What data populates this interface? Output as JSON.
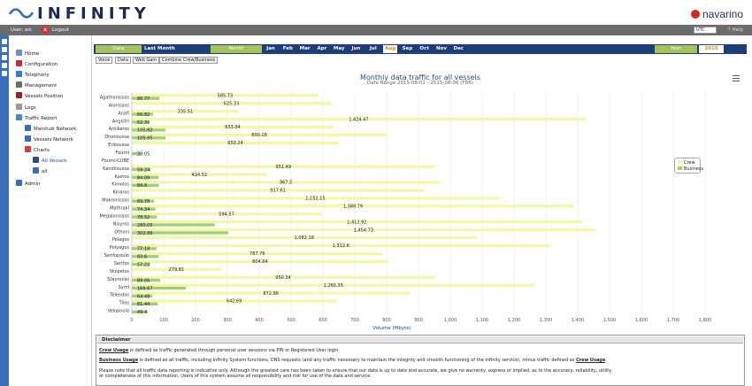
{
  "header": {
    "logo_text": "INFINITY",
    "brand": "navarino"
  },
  "userbar": {
    "user": "User: aic",
    "logout": "Logout",
    "timezone": "UTC",
    "help": "Help"
  },
  "sidebar": {
    "items": [
      {
        "label": "Home"
      },
      {
        "label": "Configuration"
      },
      {
        "label": "Telephony"
      },
      {
        "label": "Management"
      },
      {
        "label": "Vessels Position"
      },
      {
        "label": "Logs"
      },
      {
        "label": "Traffic Report"
      },
      {
        "label": "Mainhub Network"
      },
      {
        "label": "Vessels Network"
      },
      {
        "label": "Charts"
      },
      {
        "label": "All Vessels"
      },
      {
        "label": "all"
      },
      {
        "label": "Admin"
      }
    ]
  },
  "period_bar": {
    "data_label": "Data",
    "last_month": "Last Month",
    "month_label": "Month",
    "months": [
      "Jan",
      "Feb",
      "Mar",
      "Apr",
      "May",
      "Jun",
      "Jul",
      "Aug",
      "Sep",
      "Oct",
      "Nov",
      "Dec"
    ],
    "selected_month": "Aug",
    "year_label": "Year",
    "year": "2015"
  },
  "subtabs": [
    "Voice",
    "Data",
    "Web Gain",
    "Combine Crew/Business"
  ],
  "chart_data": {
    "type": "bar",
    "orientation": "horizontal",
    "title": "Monthly data traffic for all vessels",
    "subtitle": "Date Range 2015-08-01 - 2015-08-06 (FBB)",
    "xlabel": "Volume (Mbyte)",
    "xlim": [
      0,
      1800
    ],
    "x_ticks": [
      "0",
      "100",
      "200",
      "300",
      "400",
      "500",
      "600",
      "700",
      "800",
      "900",
      "1,000",
      "1,100",
      "1,200",
      "1,300",
      "1,400",
      "1,500",
      "1,600",
      "1,700",
      "1,800"
    ],
    "legend": [
      "Crew",
      "Business"
    ],
    "legend_position": "right",
    "colors": {
      "crew": "#f4f7a6",
      "business": "#9ed07a"
    },
    "categories": [
      "Agathonissos",
      "Alonissos",
      "Anafi",
      "Angistri",
      "Antikeros",
      "Dhonoussa",
      "Erikoussa",
      "Fourni",
      "Fourni-CUBE",
      "Kandiloussa",
      "Kastos",
      "Kimolos",
      "Kinaros",
      "Makronissos",
      "Mathraki",
      "Megalonissos",
      "Nisyros",
      "Othoni",
      "Pelagos",
      "Polyagos",
      "Serifopoulo",
      "Serifos",
      "Skopelos",
      "Stavronisi",
      "Symi",
      "Telendos",
      "Tilos",
      "Velopoula"
    ],
    "series": [
      {
        "name": "Crew",
        "values": [
          585.73,
          625.33,
          335.51,
          1424.47,
          633.04,
          800.18,
          650.24,
          0,
          0,
          951.49,
          424.52,
          967.5,
          917.61,
          1152.15,
          1388.79,
          594.57,
          1412.92,
          1454.73,
          1082.18,
          1312.6,
          787.76,
          804.64,
          279.81,
          950.34,
          1265.35,
          872.96,
          642.69,
          0
        ]
      },
      {
        "name": "Business",
        "values": [
          86.77,
          0,
          66.82,
          52.39,
          105.82,
          105.95,
          0,
          28.05,
          0,
          59.24,
          84.09,
          84.8,
          0,
          69.78,
          74.34,
          78.52,
          260.05,
          302.86,
          0,
          77.18,
          83.6,
          57.22,
          0,
          89.06,
          169.67,
          64.48,
          81.44,
          49.4
        ]
      }
    ],
    "bar_labels": {
      "crew": [
        "585.73",
        "625.33",
        "335.51",
        "1,424.47",
        "633.04",
        "800.18",
        "650.24",
        "",
        "",
        "951.49",
        "424.52",
        "967.5",
        "917.61",
        "1,152.15",
        "1,388.79",
        "594.57",
        "1,412.92",
        "1,454.73",
        "1,082.18",
        "1,312.6",
        "787.76",
        "804.64",
        "279.81",
        "950.34",
        "1,265.35",
        "872.96",
        "642.69",
        ""
      ],
      "business": [
        "86.77",
        "",
        "66.82",
        "52.39",
        "105.82",
        "105.95",
        "",
        "28.05",
        "",
        "59.24",
        "84.09",
        "84.8",
        "",
        "69.78",
        "74.34",
        "78.52",
        "260.05",
        "302.86",
        "",
        "77.18",
        "83.6",
        "57.22",
        "",
        "89.06",
        "169.67",
        "64.48",
        "81.44",
        "49.4"
      ]
    }
  },
  "disclaimer": {
    "title": "Disclaimer",
    "crew_term": "Crew Usage",
    "crew_text": " is defined as traffic generated through personal user sessions via PIN or Registered User login",
    "business_term": "Business Usage",
    "business_text": " is defined as all traffic, including Infinity System functions, DNS requests (and any traffic necessary to maintain the integrity and smooth functioning of the Infinity service), minus traffic defined as ",
    "business_term2": "Crew Usage",
    "note_line1": "Please note that all traffic data reporting is indicative only. Although the greatest care has been taken to ensure that our data is up to date and accurate, we give no warranty, express or implied, as to the accuracy, reliability, utility",
    "note_line2": "or completeness of this information. Users of this system assume all responsibility and risk for use of the data and service."
  }
}
